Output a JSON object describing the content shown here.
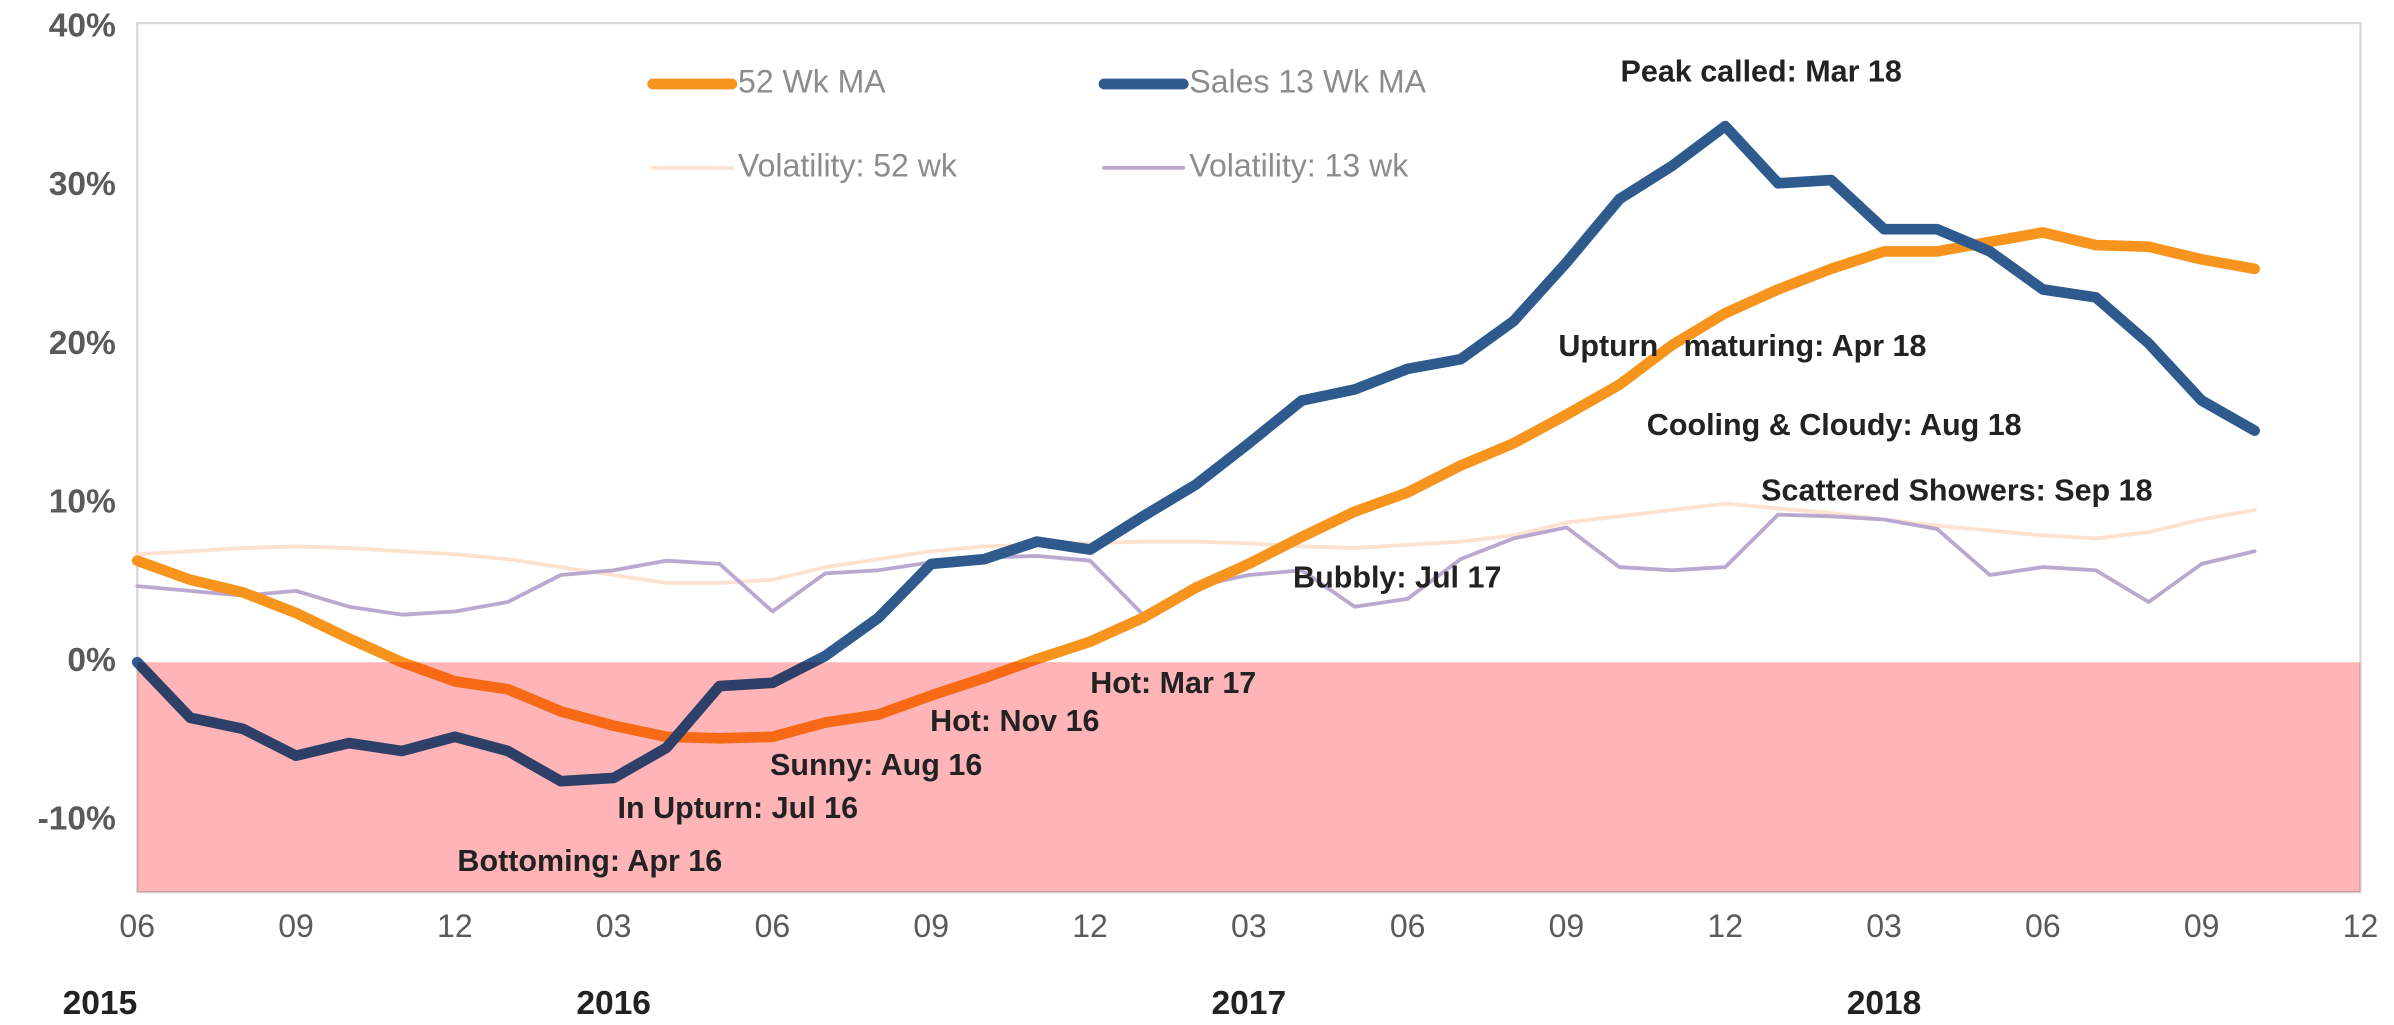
{
  "chart_data": {
    "type": "line",
    "x": [
      "2015-06",
      "2015-07",
      "2015-08",
      "2015-09",
      "2015-10",
      "2015-11",
      "2015-12",
      "2016-01",
      "2016-02",
      "2016-03",
      "2016-04",
      "2016-05",
      "2016-06",
      "2016-07",
      "2016-08",
      "2016-09",
      "2016-10",
      "2016-11",
      "2016-12",
      "2017-01",
      "2017-02",
      "2017-03",
      "2017-04",
      "2017-05",
      "2017-06",
      "2017-07",
      "2017-08",
      "2017-09",
      "2017-10",
      "2017-11",
      "2017-12",
      "2018-01",
      "2018-02",
      "2018-03",
      "2018-04",
      "2018-05",
      "2018-06",
      "2018-07",
      "2018-08",
      "2018-09",
      "2018-10"
    ],
    "series": [
      {
        "name": "52 Wk MA",
        "color": "#f7941d",
        "width": 7,
        "values": [
          6.4,
          5.2,
          4.4,
          3.1,
          1.5,
          0,
          -1.2,
          -1.7,
          -3.1,
          -4.0,
          -4.7,
          -4.8,
          -4.7,
          -3.8,
          -3.3,
          -2.1,
          -1.0,
          0.2,
          1.3,
          2.8,
          4.7,
          6.2,
          7.9,
          9.5,
          10.7,
          12.4,
          13.8,
          15.6,
          17.5,
          20,
          22,
          23.5,
          24.8,
          25.9,
          25.9,
          26.5,
          27.1,
          26.3,
          26.2,
          25.4,
          24.8
        ]
      },
      {
        "name": "Sales 13 Wk MA",
        "color": "#2e5a8e",
        "width": 7,
        "values": [
          0,
          -3.5,
          -4.2,
          -5.9,
          -5.1,
          -5.6,
          -4.7,
          -5.6,
          -7.5,
          -7.3,
          -5.4,
          -1.5,
          -1.3,
          0.4,
          2.8,
          6.2,
          6.5,
          7.6,
          7.1,
          9.2,
          11.2,
          13.8,
          16.5,
          17.2,
          18.5,
          19.1,
          21.5,
          25.2,
          29.2,
          31.3,
          33.8,
          30.2,
          30.4,
          27.3,
          27.3,
          25.9,
          23.5,
          23,
          20.1,
          16.5,
          14.6
        ]
      },
      {
        "name": "Volatility: 52 wk",
        "color": "#fde2d0",
        "width": 2.5,
        "values": [
          6.8,
          7,
          7.2,
          7.3,
          7.2,
          7,
          6.8,
          6.5,
          6,
          5.5,
          5,
          5,
          5.2,
          6,
          6.5,
          7,
          7.3,
          7.4,
          7.5,
          7.6,
          7.6,
          7.5,
          7.3,
          7.2,
          7.4,
          7.6,
          8,
          8.8,
          9.2,
          9.6,
          10,
          9.7,
          9.4,
          9,
          8.6,
          8.3,
          8,
          7.8,
          8.2,
          9,
          9.6
        ]
      },
      {
        "name": "Volatility: 13 wk",
        "color": "#b9a9d0",
        "width": 2.5,
        "values": [
          4.8,
          4.5,
          4.2,
          4.5,
          3.5,
          3,
          3.2,
          3.8,
          5.5,
          5.8,
          6.4,
          6.2,
          3.2,
          5.6,
          5.8,
          6.3,
          6.6,
          6.7,
          6.4,
          3,
          4.8,
          5.5,
          5.8,
          3.5,
          4,
          6.5,
          7.8,
          8.5,
          6,
          5.8,
          6,
          9.3,
          9.2,
          9,
          8.4,
          5.5,
          6,
          5.8,
          3.8,
          6.2,
          7
        ]
      }
    ],
    "xlim": [
      "2015-06",
      "2018-12"
    ],
    "xticks": [
      {
        "value": "2015-06",
        "label": "06"
      },
      {
        "value": "2015-09",
        "label": "09"
      },
      {
        "value": "2015-12",
        "label": "12"
      },
      {
        "value": "2016-03",
        "label": "03"
      },
      {
        "value": "2016-06",
        "label": "06"
      },
      {
        "value": "2016-09",
        "label": "09"
      },
      {
        "value": "2016-12",
        "label": "12"
      },
      {
        "value": "2017-03",
        "label": "03"
      },
      {
        "value": "2017-06",
        "label": "06"
      },
      {
        "value": "2017-09",
        "label": "09"
      },
      {
        "value": "2017-12",
        "label": "12"
      },
      {
        "value": "2018-03",
        "label": "03"
      },
      {
        "value": "2018-06",
        "label": "06"
      },
      {
        "value": "2018-09",
        "label": "09"
      },
      {
        "value": "2018-12",
        "label": "12"
      }
    ],
    "year_labels": [
      {
        "value": "2015-06",
        "label": "2015"
      },
      {
        "value": "2016-03",
        "label": "2016"
      },
      {
        "value": "2017-03",
        "label": "2017"
      },
      {
        "value": "2018-03",
        "label": "2018"
      }
    ],
    "ylim": [
      -14.5,
      40.3
    ],
    "yticks": [
      {
        "value": -10,
        "label": "-10%"
      },
      {
        "value": 0,
        "label": "0%"
      },
      {
        "value": 10,
        "label": "10%"
      },
      {
        "value": 20,
        "label": "20%"
      },
      {
        "value": 30,
        "label": "30%"
      },
      {
        "value": 40,
        "label": "40%"
      }
    ],
    "shaded_band": {
      "from": -14.5,
      "to": 0,
      "color": "#ffb5b8"
    },
    "legend": "top",
    "annotations": [
      "Peak called: Mar 18",
      "Upturn   maturing: Apr 18",
      "Cooling & Cloudy: Aug 18",
      "Scattered Showers: Sep 18",
      "Bubbly: Jul 17",
      "Hot: Mar 17",
      "Hot: Nov 16",
      "Sunny: Aug 16",
      "In Upturn: Jul 16",
      "Bottoming: Apr 16"
    ]
  }
}
